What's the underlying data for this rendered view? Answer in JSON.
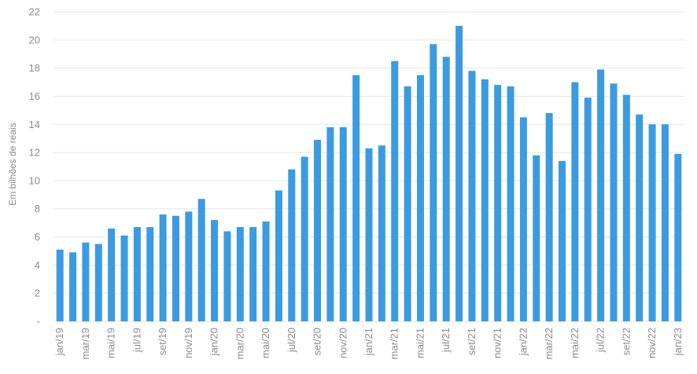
{
  "chart_data": {
    "type": "bar",
    "title": "",
    "xlabel": "",
    "ylabel": "Em bilhões de reais",
    "ylim": [
      0,
      22
    ],
    "yticks": [
      0,
      2,
      4,
      6,
      8,
      10,
      12,
      14,
      16,
      18,
      20,
      22
    ],
    "ytick_labels": [
      "-",
      "2",
      "4",
      "6",
      "8",
      "10",
      "12",
      "14",
      "16",
      "18",
      "20",
      "22"
    ],
    "grid": true,
    "legend": "none",
    "bar_color": "#3b9be0",
    "categories": [
      "jan/19",
      "fev/19",
      "mar/19",
      "abr/19",
      "mai/19",
      "jun/19",
      "jul/19",
      "ago/19",
      "set/19",
      "out/19",
      "nov/19",
      "dez/19",
      "jan/20",
      "fev/20",
      "mar/20",
      "abr/20",
      "mai/20",
      "jun/20",
      "jul/20",
      "ago/20",
      "set/20",
      "out/20",
      "nov/20",
      "dez/20",
      "jan/21",
      "fev/21",
      "mar/21",
      "abr/21",
      "mai/21",
      "jun/21",
      "jul/21",
      "ago/21",
      "set/21",
      "out/21",
      "nov/21",
      "dez/21",
      "jan/22",
      "fev/22",
      "mar/22",
      "abr/22",
      "mai/22",
      "jun/22",
      "jul/22",
      "ago/22",
      "set/22",
      "out/22",
      "nov/22",
      "dez/22",
      "jan/23"
    ],
    "visible_tick_labels": [
      "jan/19",
      "mar/19",
      "mai/19",
      "jul/19",
      "set/19",
      "nov/19",
      "jan/20",
      "mar/20",
      "mai/20",
      "jul/20",
      "set/20",
      "nov/20",
      "jan/21",
      "mar/21",
      "mai/21",
      "jul/21",
      "set/21",
      "nov/21",
      "jan/22",
      "mar/22",
      "mai/22",
      "jul/22",
      "set/22",
      "nov/22",
      "jan/23"
    ],
    "values": [
      5.1,
      4.9,
      5.6,
      5.5,
      6.6,
      6.1,
      6.7,
      6.7,
      7.6,
      7.5,
      7.8,
      8.7,
      7.2,
      6.4,
      6.7,
      6.7,
      7.1,
      9.3,
      10.8,
      11.7,
      12.9,
      13.8,
      13.8,
      17.5,
      12.3,
      12.5,
      18.5,
      16.7,
      17.5,
      19.7,
      18.8,
      21.0,
      17.8,
      17.2,
      16.8,
      16.7,
      14.5,
      11.8,
      14.8,
      11.4,
      17.0,
      15.9,
      17.9,
      16.9,
      16.1,
      14.7,
      14.0,
      14.0,
      11.9
    ]
  }
}
